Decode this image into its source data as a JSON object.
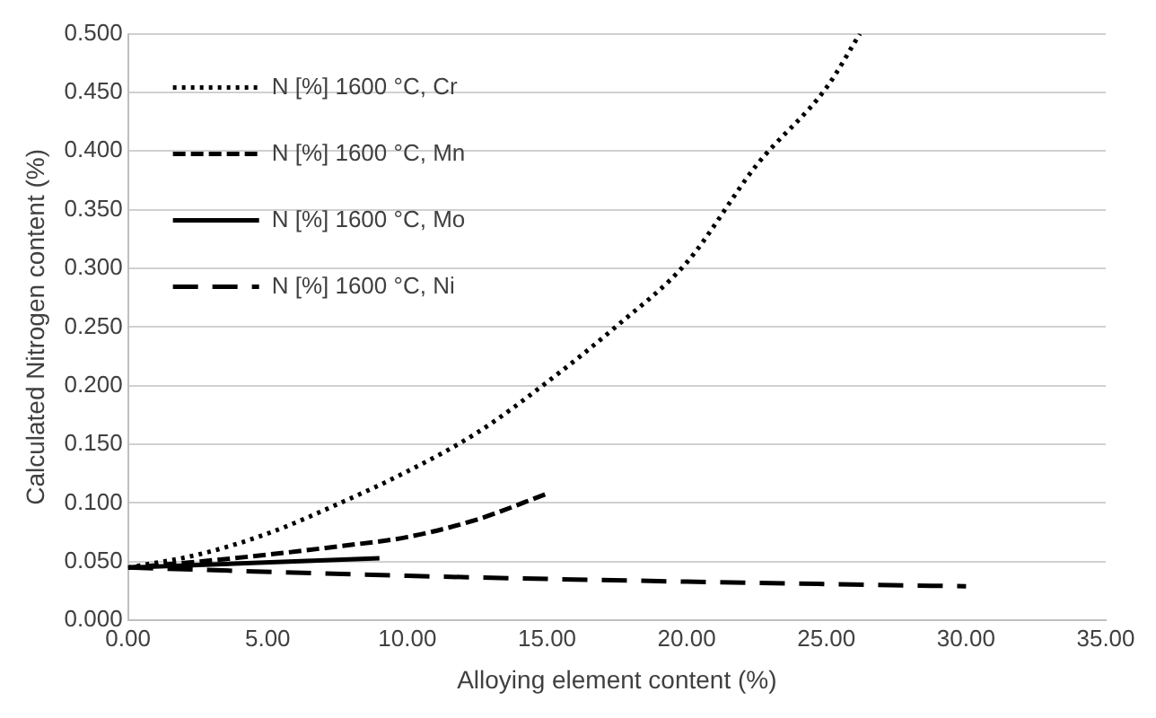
{
  "chart_data": {
    "type": "line",
    "xlabel": "Alloying element content (%)",
    "ylabel": "Calculated Nitrogen content (%)",
    "xlim": [
      0,
      35
    ],
    "xticks": [
      {
        "value": 0,
        "label": "0.00"
      },
      {
        "value": 5,
        "label": "5.00"
      },
      {
        "value": 10,
        "label": "10.00"
      },
      {
        "value": 15,
        "label": "15.00"
      },
      {
        "value": 20,
        "label": "20.00"
      },
      {
        "value": 25,
        "label": "25.00"
      },
      {
        "value": 30,
        "label": "30.00"
      },
      {
        "value": 35,
        "label": "35.00"
      }
    ],
    "ylim": [
      0,
      0.5
    ],
    "yticks": [
      {
        "value": 0,
        "label": "0.000"
      },
      {
        "value": 0.05,
        "label": "0.050"
      },
      {
        "value": 0.1,
        "label": "0.100"
      },
      {
        "value": 0.15,
        "label": "0.150"
      },
      {
        "value": 0.2,
        "label": "0.200"
      },
      {
        "value": 0.25,
        "label": "0.250"
      },
      {
        "value": 0.3,
        "label": "0.300"
      },
      {
        "value": 0.35,
        "label": "0.350"
      },
      {
        "value": 0.4,
        "label": "0.400"
      },
      {
        "value": 0.45,
        "label": "0.450"
      },
      {
        "value": 0.5,
        "label": "0.500"
      }
    ],
    "grid": "y",
    "legend": "top left",
    "marker": "none",
    "series": [
      {
        "name": "N [%] 1600 °C, Cr",
        "color": "#000000",
        "line_style": "dotted",
        "x": [
          0,
          2.5,
          5,
          7.5,
          10,
          12.5,
          15,
          17.5,
          20,
          22.5,
          25,
          26.2
        ],
        "values": [
          0.045,
          0.056,
          0.074,
          0.099,
          0.127,
          0.16,
          0.203,
          0.251,
          0.305,
          0.388,
          0.454,
          0.5
        ]
      },
      {
        "name": "N [%] 1600 °C, Mn",
        "color": "#000000",
        "line_style": "dashed",
        "x": [
          0,
          2.5,
          5,
          7.5,
          10,
          12.5,
          15
        ],
        "values": [
          0.045,
          0.05,
          0.056,
          0.063,
          0.071,
          0.086,
          0.108
        ]
      },
      {
        "name": "N [%] 1600 °C, Mo",
        "color": "#000000",
        "line_style": "solid",
        "x": [
          0,
          9
        ],
        "values": [
          0.045,
          0.053
        ]
      },
      {
        "name": "N [%] 1600 °C, Ni",
        "color": "#000000",
        "line_style": "longdash",
        "x": [
          0,
          10,
          20,
          30
        ],
        "values": [
          0.045,
          0.038,
          0.033,
          0.029
        ]
      }
    ]
  }
}
